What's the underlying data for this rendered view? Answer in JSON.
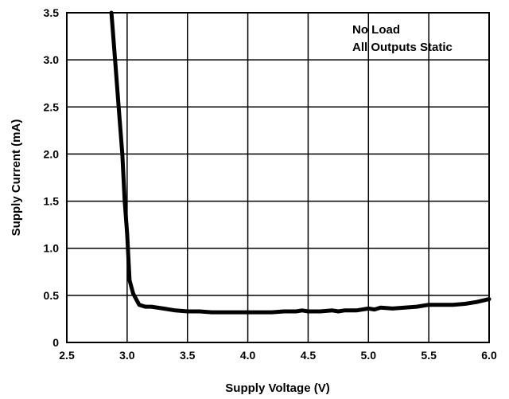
{
  "chart_data": {
    "type": "line",
    "title": "",
    "xlabel": "Supply Voltage (V)",
    "ylabel": "Supply Current (mA)",
    "xlim": [
      2.5,
      6.0
    ],
    "ylim": [
      0,
      3.5
    ],
    "x_ticks": [
      "2.5",
      "3.0",
      "3.5",
      "4.0",
      "4.5",
      "5.0",
      "5.5",
      "6.0"
    ],
    "y_ticks": [
      "0",
      "0.5",
      "1.0",
      "1.5",
      "2.0",
      "2.5",
      "3.0",
      "3.5"
    ],
    "grid": true,
    "annotations": [
      "No Load",
      "All Outputs Static"
    ],
    "line_color": "#000000",
    "series": [
      {
        "x": [
          2.87,
          2.9,
          2.93,
          2.96,
          2.98,
          3.0,
          3.02,
          3.05,
          3.1,
          3.15,
          3.2,
          3.3,
          3.4,
          3.5,
          3.6,
          3.7,
          3.8,
          3.9,
          4.0,
          4.1,
          4.2,
          4.3,
          4.4,
          4.45,
          4.5,
          4.6,
          4.7,
          4.75,
          4.8,
          4.9,
          5.0,
          5.05,
          5.1,
          5.2,
          5.3,
          5.4,
          5.5,
          5.6,
          5.7,
          5.8,
          5.85,
          5.9,
          6.0
        ],
        "y": [
          3.5,
          3.0,
          2.5,
          2.0,
          1.5,
          1.15,
          0.66,
          0.52,
          0.4,
          0.38,
          0.38,
          0.36,
          0.34,
          0.33,
          0.33,
          0.32,
          0.32,
          0.32,
          0.32,
          0.32,
          0.32,
          0.33,
          0.33,
          0.34,
          0.33,
          0.33,
          0.34,
          0.33,
          0.34,
          0.34,
          0.36,
          0.35,
          0.37,
          0.36,
          0.37,
          0.38,
          0.4,
          0.4,
          0.4,
          0.41,
          0.42,
          0.43,
          0.46
        ]
      }
    ]
  }
}
